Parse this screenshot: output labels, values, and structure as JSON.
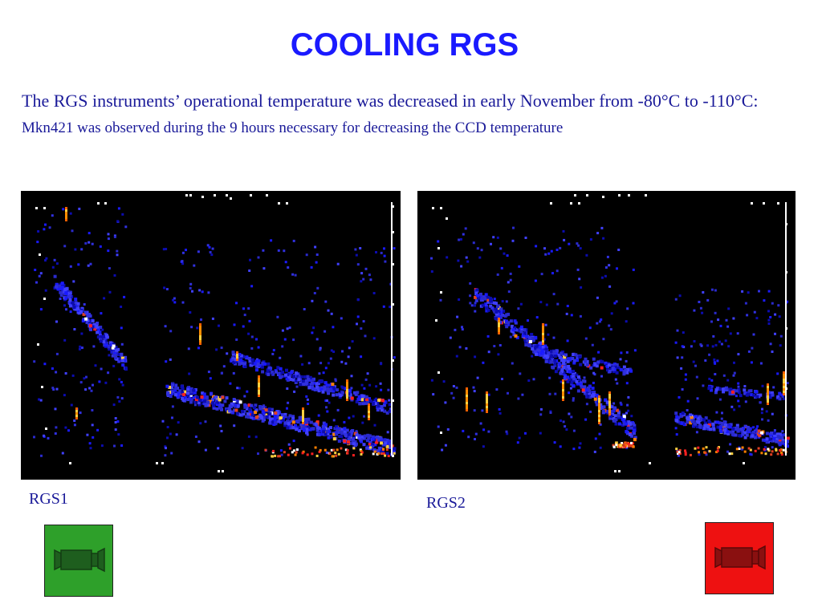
{
  "slide": {
    "title": "COOLING RGS",
    "text_large": "The RGS instruments’ operational temperature was decreased in early November from -80°C to -110°C: ",
    "text_small": "Mkn421 was observed during the 9 hours necessary for decreasing the CCD temperature"
  },
  "panels": [
    {
      "caption": "RGS1"
    },
    {
      "caption": "RGS2"
    }
  ],
  "buttons": {
    "left_icon": "camera-icon",
    "left_color": "#2ea02a",
    "right_icon": "camera-icon",
    "right_color": "#ee1111"
  },
  "colors": {
    "title": "#1a1aff",
    "text": "#1a1a99",
    "image_background": "#000000"
  }
}
